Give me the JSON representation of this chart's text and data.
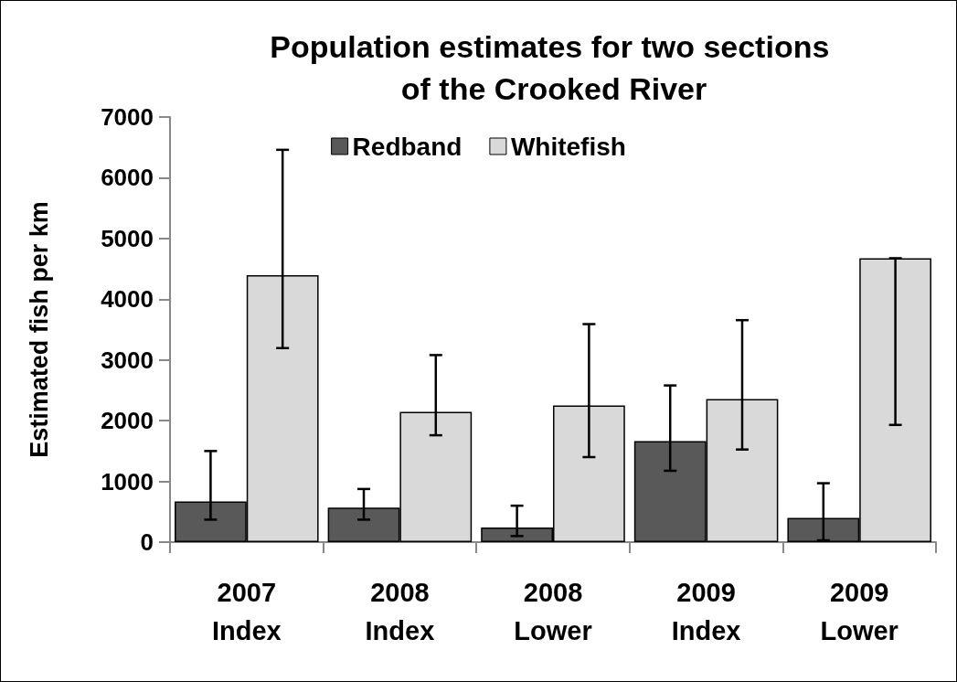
{
  "chart_data": {
    "type": "bar",
    "title": "Population estimates for two sections of the Crooked River",
    "ylabel": "Estimated fish per km",
    "categories": [
      "2007 Index",
      "2008 Index",
      "2008 Lower",
      "2009 Index",
      "2009 Lower"
    ],
    "series": [
      {
        "name": "Redband",
        "color": "#595959",
        "values": [
          670,
          570,
          240,
          1665,
          400
        ],
        "errors": [
          [
            370,
            1500
          ],
          [
            370,
            875
          ],
          [
            100,
            600
          ],
          [
            1175,
            2580
          ],
          [
            30,
            970
          ]
        ]
      },
      {
        "name": "Whitefish",
        "color": "#d9d9d9",
        "values": [
          4395,
          2145,
          2250,
          2355,
          4675
        ],
        "errors": [
          [
            3195,
            6460
          ],
          [
            1760,
            3080
          ],
          [
            1400,
            3590
          ],
          [
            1525,
            3655
          ],
          [
            1930,
            4675
          ]
        ]
      }
    ],
    "ylim": [
      0,
      7000
    ],
    "yticks": [
      0,
      1000,
      2000,
      3000,
      4000,
      5000,
      6000,
      7000
    ],
    "grid": false,
    "legend": "top"
  }
}
